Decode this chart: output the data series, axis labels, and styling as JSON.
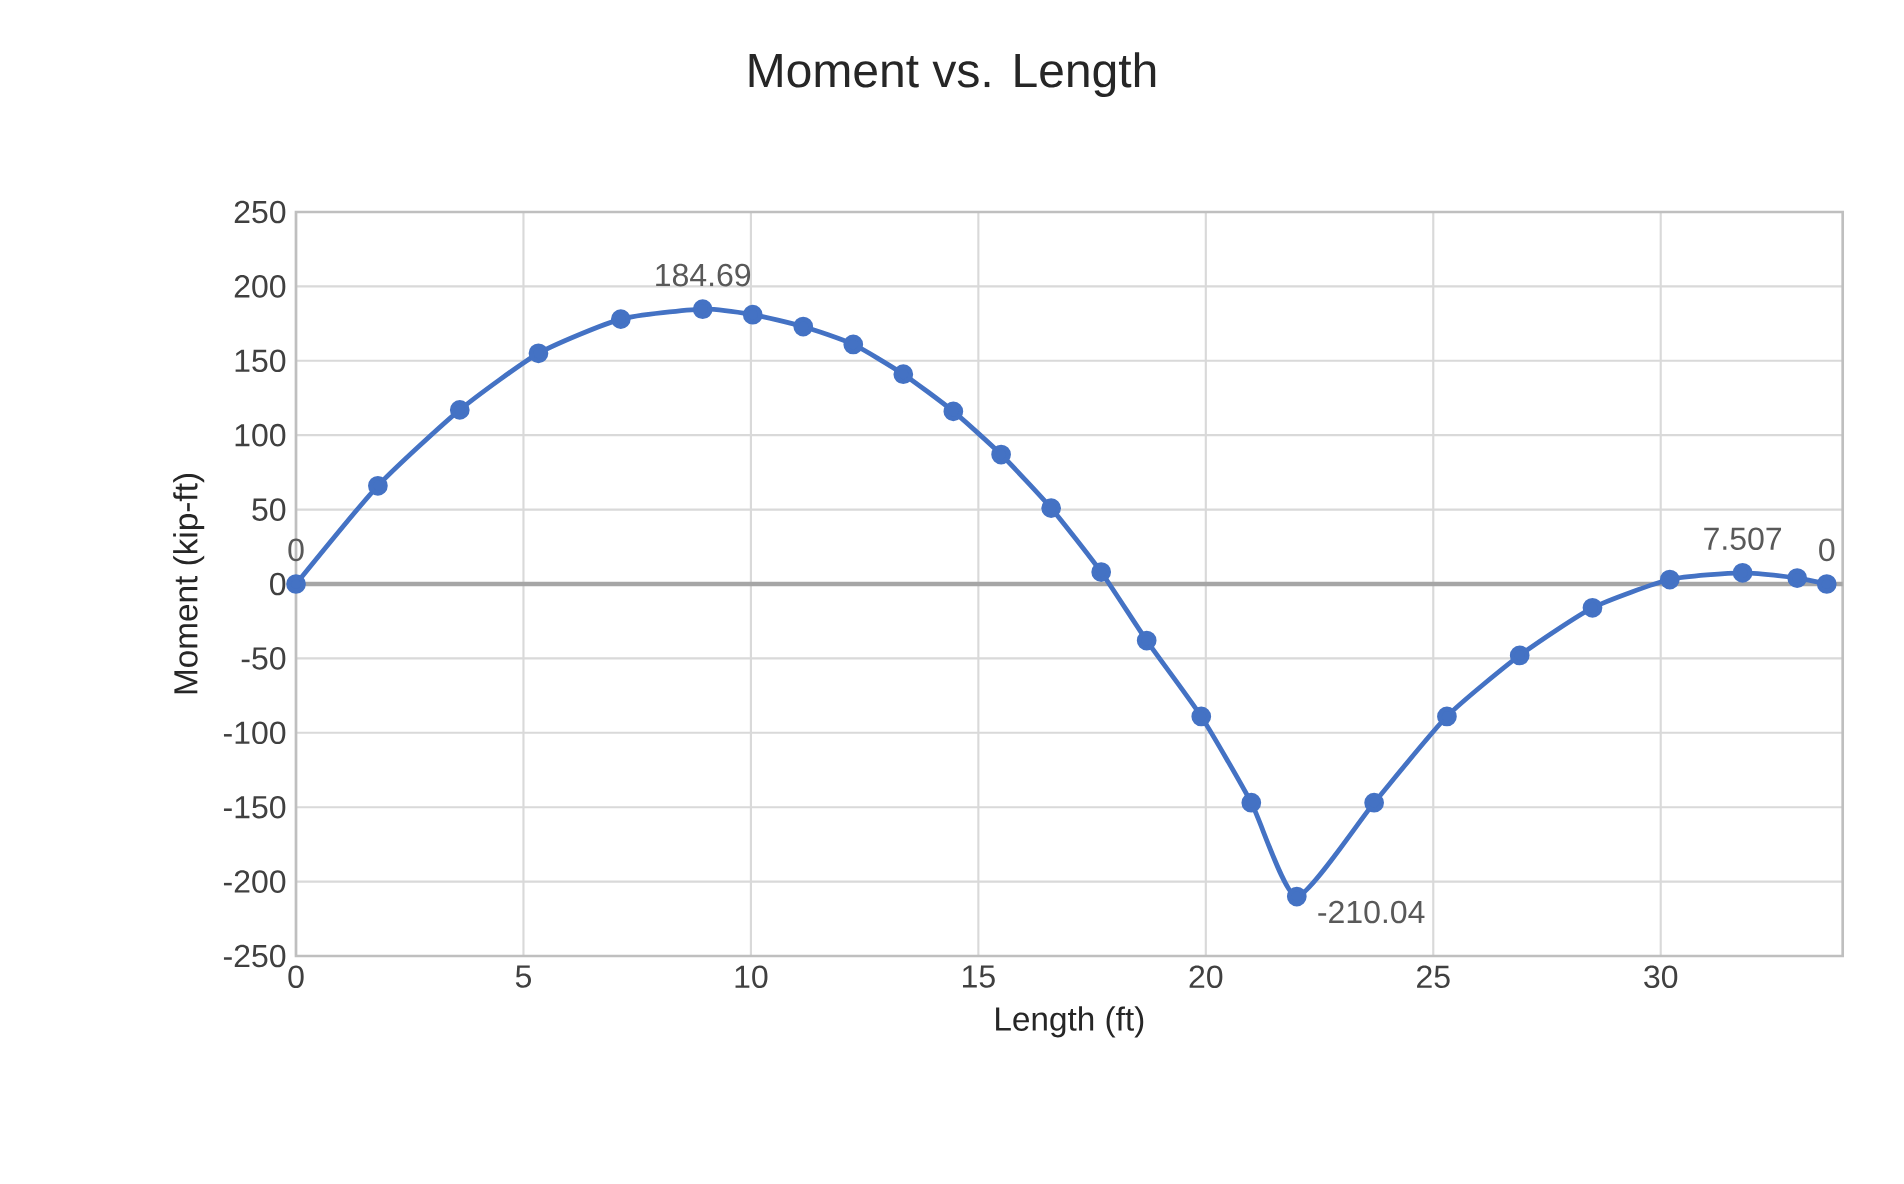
{
  "chart_data": {
    "type": "line",
    "title": "Moment vs. Length",
    "xlabel": "Length (ft)",
    "ylabel": "Moment (kip-ft)",
    "x": [
      0,
      1.8,
      3.6,
      5.33,
      7.14,
      8.94,
      10.04,
      11.15,
      12.25,
      13.35,
      14.45,
      15.5,
      16.6,
      17.7,
      18.7,
      19.9,
      21.0,
      22.0,
      23.7,
      25.3,
      26.9,
      28.5,
      30.2,
      31.8,
      33.0,
      33.65
    ],
    "series": [
      {
        "color": "#4472c4",
        "values": [
          0,
          66,
          117,
          155,
          178,
          184.69,
          181,
          173,
          161,
          141,
          116,
          87,
          51,
          8,
          -38,
          -89,
          -147,
          -210.04,
          -147,
          -89,
          -48,
          -16,
          3,
          7.507,
          4,
          0
        ],
        "value_labels": [
          "0",
          null,
          null,
          null,
          null,
          "184.69",
          null,
          null,
          null,
          null,
          null,
          null,
          null,
          null,
          null,
          null,
          null,
          "-210.04",
          null,
          null,
          null,
          null,
          null,
          "7.507",
          null,
          "0"
        ]
      }
    ],
    "xlim": [
      0,
      34
    ],
    "xticks": [
      0,
      5,
      10,
      15,
      20,
      25,
      30
    ],
    "ylim": [
      -250,
      250
    ],
    "yticks": [
      -250,
      -200,
      -150,
      -100,
      -50,
      0,
      50,
      100,
      150,
      200,
      250
    ],
    "grid": true,
    "marker": "circle",
    "line_style": "solid"
  }
}
